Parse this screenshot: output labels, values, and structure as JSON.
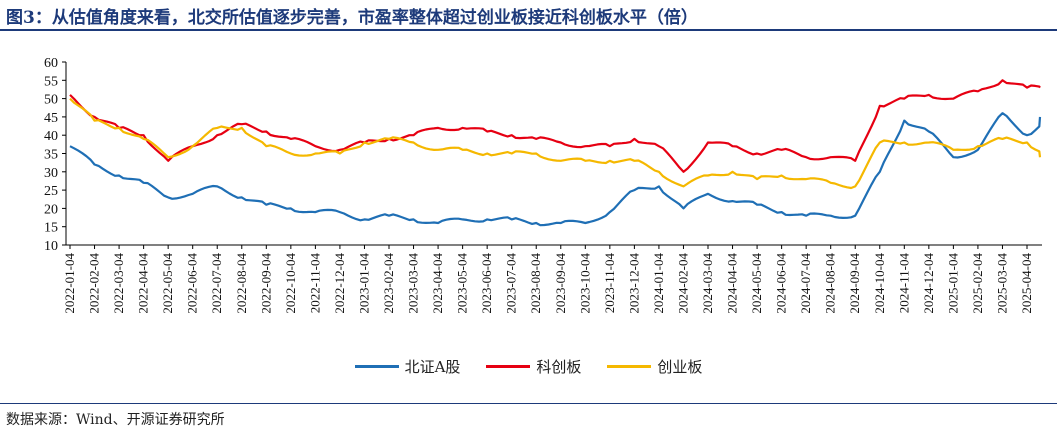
{
  "title": "图3：从估值角度来看，北交所估值逐步完善，市盈率整体超过创业板接近科创板水平（倍）",
  "source": "数据来源：Wind、开源证券研究所",
  "colors": {
    "accent": "#1d3a7a",
    "north": "#1f6fb5",
    "star": "#e60012",
    "chinext": "#f5b800"
  },
  "chart_data": {
    "type": "line",
    "title": "",
    "xlabel": "",
    "ylabel": "",
    "ylim": [
      10,
      60
    ],
    "yticks": [
      10,
      15,
      20,
      25,
      30,
      35,
      40,
      45,
      50,
      55,
      60
    ],
    "grid": false,
    "legend_position": "bottom",
    "x_tick_labels": [
      "2022-01-04",
      "2022-02-04",
      "2022-03-04",
      "2022-04-04",
      "2022-05-04",
      "2022-06-04",
      "2022-07-04",
      "2022-08-04",
      "2022-09-04",
      "2022-10-04",
      "2022-11-04",
      "2022-12-04",
      "2023-01-04",
      "2023-02-04",
      "2023-03-04",
      "2023-04-04",
      "2023-05-04",
      "2023-06-04",
      "2023-07-04",
      "2023-08-04",
      "2023-09-04",
      "2023-10-04",
      "2023-11-04",
      "2023-12-04",
      "2024-01-04",
      "2024-02-04",
      "2024-03-04",
      "2024-04-04",
      "2024-05-04",
      "2024-06-04",
      "2024-07-04",
      "2024-08-04",
      "2024-09-04",
      "2024-10-04",
      "2024-11-04",
      "2024-12-04",
      "2025-01-04",
      "2025-02-04",
      "2025-03-04",
      "2025-04-04"
    ],
    "x": [
      "2022-01",
      "2022-02",
      "2022-03",
      "2022-04",
      "2022-05",
      "2022-06",
      "2022-07",
      "2022-08",
      "2022-09",
      "2022-10",
      "2022-11",
      "2022-12",
      "2023-01",
      "2023-02",
      "2023-03",
      "2023-04",
      "2023-05",
      "2023-06",
      "2023-07",
      "2023-08",
      "2023-09",
      "2023-10",
      "2023-11",
      "2023-12",
      "2024-01",
      "2024-02",
      "2024-03",
      "2024-04",
      "2024-05",
      "2024-06",
      "2024-07",
      "2024-08",
      "2024-09",
      "2024-10",
      "2024-11",
      "2024-12",
      "2025-01",
      "2025-02",
      "2025-03",
      "2025-04",
      "2025-05"
    ],
    "series": [
      {
        "name": "北证A股",
        "color": "#1f6fb5",
        "values": [
          37,
          32,
          29,
          27,
          23,
          24,
          26,
          23,
          21,
          20,
          19,
          19,
          17,
          18,
          17,
          16,
          17,
          17,
          17,
          16,
          16,
          16,
          19,
          25,
          26,
          20,
          24,
          22,
          21,
          19,
          18,
          18,
          18,
          30,
          44,
          41,
          34,
          36,
          46,
          40,
          45
        ]
      },
      {
        "name": "科创板",
        "color": "#e60012",
        "values": [
          51,
          45,
          42,
          40,
          33,
          37,
          40,
          43,
          41,
          39,
          37,
          36,
          38,
          39,
          40,
          42,
          42,
          41,
          40,
          39,
          38,
          37,
          37,
          39,
          37,
          30,
          38,
          37,
          35,
          36,
          34,
          34,
          33,
          48,
          50,
          51,
          50,
          52,
          55,
          53,
          53
        ]
      },
      {
        "name": "创业板",
        "color": "#f5b800",
        "values": [
          50,
          44,
          42,
          39,
          34,
          37,
          42,
          42,
          37,
          35,
          35,
          35,
          38,
          39,
          38,
          36,
          36,
          35,
          35,
          35,
          33,
          33,
          33,
          33,
          30,
          26,
          29,
          30,
          28,
          29,
          28,
          27,
          26,
          38,
          38,
          38,
          36,
          37,
          39,
          38,
          34
        ]
      }
    ]
  }
}
